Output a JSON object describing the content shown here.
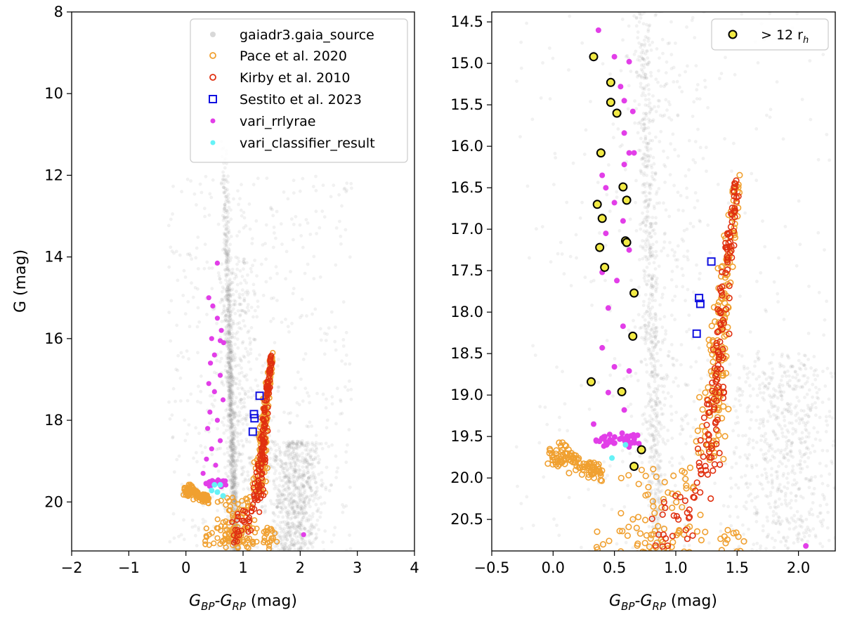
{
  "chart_data": [
    {
      "type": "scatter",
      "panel": "left",
      "xlabel_main": "G",
      "xlabel_sub1": "BP",
      "xlabel_mid": "-G",
      "xlabel_sub2": "RP",
      "xlabel_unit": " (mag)",
      "ylabel": "G (mag)",
      "xlim": [
        -2,
        4
      ],
      "ylim": [
        21.2,
        8
      ],
      "xticks": [
        -2,
        -1,
        0,
        1,
        2,
        3,
        4
      ],
      "xtick_labels": [
        "−2",
        "−1",
        "0",
        "1",
        "2",
        "3",
        "4"
      ],
      "yticks": [
        8,
        10,
        12,
        14,
        16,
        18,
        20
      ],
      "ytick_labels": [
        "8",
        "10",
        "12",
        "14",
        "16",
        "18",
        "20"
      ],
      "legend_position": "top-right",
      "legend": [
        {
          "label": "gaiadr3.gaia_source",
          "marker": "dot",
          "color": "#d8d8d8"
        },
        {
          "label": "Pace et al. 2020",
          "marker": "ring",
          "color": "#f0a030"
        },
        {
          "label": "Kirby et al. 2010",
          "marker": "ring",
          "color": "#e03010"
        },
        {
          "label": "Sestito et al. 2023",
          "marker": "square",
          "color": "#1010e0"
        },
        {
          "label": "vari_rrlyrae",
          "marker": "dot",
          "color": "#e23ee8"
        },
        {
          "label": "vari_classifier_result",
          "marker": "dot",
          "color": "#66f2f7"
        }
      ],
      "series": [
        {
          "name": "Sestito et al. 2023",
          "marker": "square",
          "color": "#1010e0",
          "points": [
            [
              1.29,
              17.4
            ],
            [
              1.19,
              17.85
            ],
            [
              1.2,
              17.95
            ],
            [
              1.17,
              18.28
            ]
          ]
        },
        {
          "name": "vari_rrlyrae",
          "marker": "dot",
          "color": "#e23ee8",
          "points": [
            [
              0.55,
              14.15
            ],
            [
              0.4,
              15.0
            ],
            [
              0.47,
              15.2
            ],
            [
              0.55,
              15.5
            ],
            [
              0.62,
              15.8
            ],
            [
              0.45,
              16.0
            ],
            [
              0.6,
              16.05
            ],
            [
              0.66,
              16.1
            ],
            [
              0.5,
              16.4
            ],
            [
              0.43,
              16.6
            ],
            [
              0.6,
              16.9
            ],
            [
              0.4,
              17.1
            ],
            [
              0.5,
              17.3
            ],
            [
              0.65,
              17.5
            ],
            [
              0.42,
              17.8
            ],
            [
              0.55,
              18.0
            ],
            [
              0.38,
              18.2
            ],
            [
              0.6,
              18.5
            ],
            [
              0.45,
              18.7
            ],
            [
              0.36,
              18.95
            ],
            [
              0.52,
              19.1
            ],
            [
              0.3,
              19.3
            ],
            [
              2.06,
              20.8
            ]
          ]
        },
        {
          "name": "vari_classifier_result",
          "marker": "dot",
          "color": "#66f2f7",
          "points": [
            [
              0.5,
              19.58
            ],
            [
              0.6,
              19.58
            ],
            [
              0.45,
              19.72
            ],
            [
              0.55,
              19.76
            ],
            [
              0.65,
              19.85
            ]
          ]
        }
      ]
    },
    {
      "type": "scatter",
      "panel": "right",
      "xlabel_main": "G",
      "xlabel_sub1": "BP",
      "xlabel_mid": "-G",
      "xlabel_sub2": "RP",
      "xlabel_unit": " (mag)",
      "ylabel": "",
      "xlim": [
        -0.5,
        2.3
      ],
      "ylim": [
        20.88,
        14.38
      ],
      "xticks": [
        -0.5,
        0.0,
        0.5,
        1.0,
        1.5,
        2.0
      ],
      "xtick_labels": [
        "−0.5",
        "0.0",
        "0.5",
        "1.0",
        "1.5",
        "2.0"
      ],
      "yticks": [
        14.5,
        15.0,
        15.5,
        16.0,
        16.5,
        17.0,
        17.5,
        18.0,
        18.5,
        19.0,
        19.5,
        20.0,
        20.5
      ],
      "ytick_labels": [
        "14.5",
        "15.0",
        "15.5",
        "16.0",
        "16.5",
        "17.0",
        "17.5",
        "18.0",
        "18.5",
        "19.0",
        "19.5",
        "20.0",
        "20.5"
      ],
      "legend_position": "top-right",
      "legend_label_main": "> 12 r",
      "legend_label_sub": "h",
      "series": [
        {
          "name": "> 12 r_h",
          "marker": "ring-filled",
          "color": "#f2ea45",
          "points": [
            [
              0.33,
              14.92
            ],
            [
              0.47,
              15.23
            ],
            [
              0.47,
              15.47
            ],
            [
              0.52,
              15.6
            ],
            [
              0.39,
              16.08
            ],
            [
              0.57,
              16.49
            ],
            [
              0.36,
              16.7
            ],
            [
              0.6,
              16.65
            ],
            [
              0.4,
              16.87
            ],
            [
              0.38,
              17.22
            ],
            [
              0.59,
              17.14
            ],
            [
              0.6,
              17.16
            ],
            [
              0.42,
              17.46
            ],
            [
              0.66,
              17.77
            ],
            [
              0.65,
              18.29
            ],
            [
              0.31,
              18.84
            ],
            [
              0.56,
              18.96
            ],
            [
              0.72,
              19.66
            ],
            [
              0.66,
              19.86
            ]
          ]
        },
        {
          "name": "Sestito et al. 2023",
          "marker": "square",
          "color": "#1010e0",
          "points": [
            [
              1.29,
              17.39
            ],
            [
              1.19,
              17.83
            ],
            [
              1.2,
              17.9
            ],
            [
              1.17,
              18.26
            ]
          ]
        },
        {
          "name": "vari_rrlyrae",
          "marker": "dot",
          "color": "#e23ee8",
          "points": [
            [
              0.37,
              14.6
            ],
            [
              0.5,
              14.92
            ],
            [
              0.62,
              14.98
            ],
            [
              0.55,
              15.28
            ],
            [
              0.58,
              15.45
            ],
            [
              0.65,
              15.58
            ],
            [
              0.58,
              15.84
            ],
            [
              0.62,
              16.08
            ],
            [
              0.66,
              16.08
            ],
            [
              0.58,
              16.22
            ],
            [
              0.4,
              16.35
            ],
            [
              0.43,
              16.5
            ],
            [
              0.5,
              16.68
            ],
            [
              0.57,
              16.9
            ],
            [
              0.43,
              17.05
            ],
            [
              0.62,
              17.25
            ],
            [
              0.4,
              17.52
            ],
            [
              0.52,
              17.62
            ],
            [
              0.45,
              17.95
            ],
            [
              0.57,
              18.17
            ],
            [
              0.4,
              18.43
            ],
            [
              0.5,
              18.66
            ],
            [
              0.62,
              18.71
            ],
            [
              0.45,
              18.97
            ],
            [
              0.58,
              19.18
            ],
            [
              0.33,
              19.35
            ],
            [
              2.06,
              20.82
            ]
          ]
        },
        {
          "name": "vari_classifier_result",
          "marker": "dot",
          "color": "#66f2f7",
          "points": [
            [
              0.59,
              19.6
            ],
            [
              0.48,
              19.76
            ]
          ]
        }
      ]
    }
  ]
}
